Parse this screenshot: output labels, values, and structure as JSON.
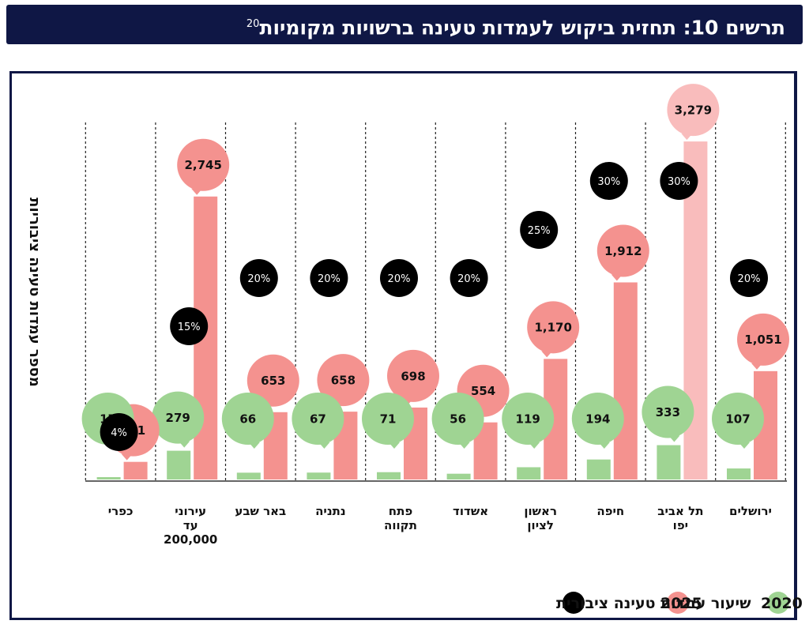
{
  "title": {
    "main": "תרשים 10: תחזית ביקוש לעמדות טעינה ברשויות מקומיות",
    "footnote": "20"
  },
  "colors": {
    "header_bg": "#0f1745",
    "series_2020": "#9fd493",
    "series_2025": "#f4928f",
    "series_2025_tel_aviv": "#f9bcbc",
    "rate_bubble": "#000000"
  },
  "chart_data": {
    "type": "bar",
    "ylabel": "מספר עמדות טעינה ציבוריות",
    "xlabel": "",
    "grid": false,
    "axis_direction": "rtl",
    "legend_position": "bottom-right",
    "categories": [
      "ירושלים",
      "תל אביב יפו",
      "חיפה",
      "ראשון לציון",
      "אשדוד",
      "פתח תקווה",
      "נתניה",
      "באר שבע",
      "עירוני עד 200,000",
      "כפרי"
    ],
    "series": [
      {
        "name": "2020",
        "values": [
          107,
          333,
          194,
          119,
          56,
          71,
          67,
          66,
          279,
          17
        ]
      },
      {
        "name": "2025",
        "values": [
          1051,
          3279,
          1912,
          1170,
          554,
          698,
          658,
          653,
          2745,
          171
        ]
      }
    ],
    "data_labels_2020": [
      "107",
      "333",
      "194",
      "119",
      "56",
      "71",
      "67",
      "66",
      "279",
      "17"
    ],
    "data_labels_2025": [
      "1,051",
      "3,279",
      "1,912",
      "1,170",
      "554",
      "698",
      "658",
      "653",
      "2,745",
      "171"
    ],
    "public_charging_rate": [
      "20%",
      "30%",
      "30%",
      "25%",
      "20%",
      "20%",
      "20%",
      "20%",
      "15%",
      "4%"
    ],
    "legend": [
      "2020",
      "2025",
      "שיעור עמדות טעינה ציבורית"
    ]
  }
}
